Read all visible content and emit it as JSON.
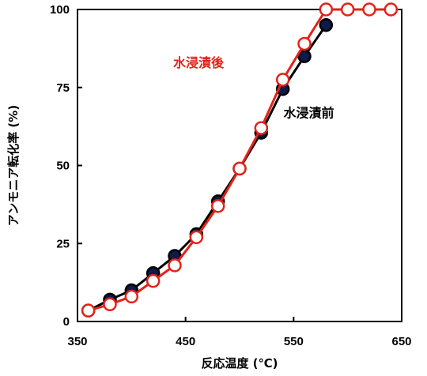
{
  "chart_data": {
    "type": "line",
    "title": "",
    "xlabel": "反応温度 (℃)",
    "ylabel": "アンモニア転化率 (%)",
    "xlim": [
      350,
      650
    ],
    "ylim": [
      0,
      100
    ],
    "xticks": [
      350,
      450,
      550,
      650
    ],
    "yticks": [
      0,
      25,
      50,
      75,
      100
    ],
    "grid": false,
    "series": [
      {
        "name": "水浸漬前",
        "color": "#000000",
        "marker_fill": "#0d1a4a",
        "marker_edge": "#000000",
        "x": [
          360,
          380,
          400,
          420,
          440,
          460,
          480,
          500,
          520,
          540,
          560,
          580
        ],
        "y": [
          3.5,
          7,
          10,
          15.5,
          21,
          28,
          38.5,
          49,
          60.5,
          74.5,
          85,
          95
        ]
      },
      {
        "name": "水浸漬後",
        "color": "#e32219",
        "marker_fill": "#ffffff",
        "marker_edge": "#e32219",
        "x": [
          360,
          380,
          400,
          420,
          440,
          460,
          480,
          500,
          520,
          540,
          560,
          580,
          600,
          620,
          640
        ],
        "y": [
          3.5,
          5.5,
          8,
          13,
          18,
          27,
          37,
          49,
          62,
          77.5,
          89,
          100,
          100,
          100,
          100
        ]
      }
    ],
    "annotations": [
      {
        "text": "水浸漬後",
        "color": "#e32219",
        "x": 462,
        "y": 81.5
      },
      {
        "text": "水浸漬前",
        "color": "#000000",
        "x": 564,
        "y": 65.5
      }
    ]
  }
}
